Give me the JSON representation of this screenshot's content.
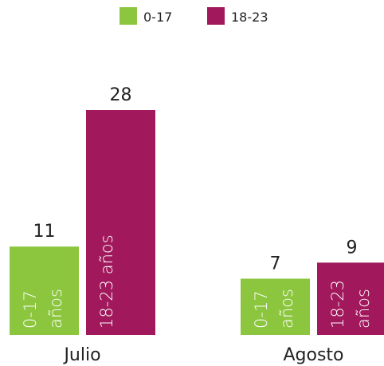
{
  "chart_data": {
    "type": "bar",
    "categories": [
      "Julio",
      "Agosto"
    ],
    "series": [
      {
        "name": "0-17",
        "color": "#8cc63f",
        "bar_label": "0-17 años",
        "values": [
          11,
          7
        ]
      },
      {
        "name": "18-23",
        "color": "#a1195c",
        "bar_label": "18-23 años",
        "values": [
          28,
          9
        ]
      }
    ],
    "ylim": [
      0,
      28
    ]
  }
}
